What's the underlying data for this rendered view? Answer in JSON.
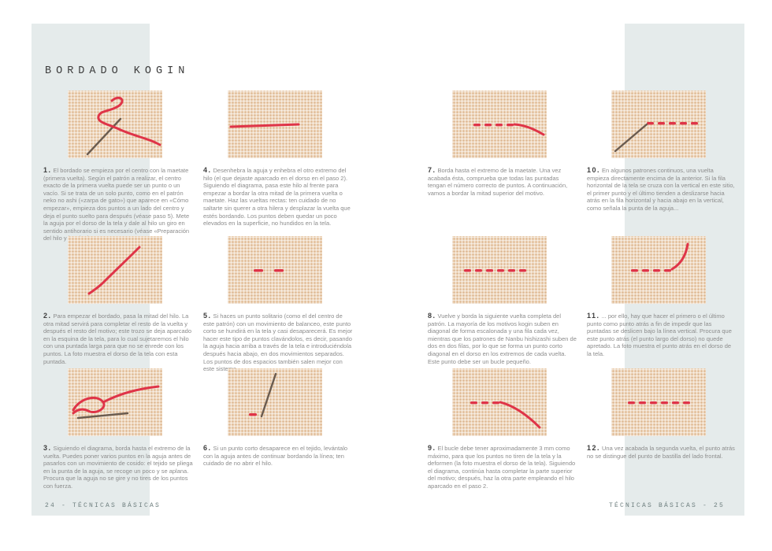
{
  "page": {
    "title": "BORDADO KOGIN",
    "left_footer": "24 - TÉCNICAS BÁSICAS",
    "right_footer": "TÉCNICAS BÁSICAS - 25"
  },
  "colors": {
    "accent_band": "#e5ebeb",
    "fabric": "#f2dabe",
    "thread": "#df3448",
    "needle": "#6a5b4f",
    "caption_text": "#8c8c8c",
    "step_number": "#3e3e3e"
  },
  "steps": [
    {
      "number": "1.",
      "caption": "El bordado se empieza por el centro con la maetate (primera vuelta). Según el patrón a realizar, el centro exacto de la primera vuelta puede ser un punto o un vacío. Si se trata de un solo punto, como en el patrón neko no ashi («zarpa de gato») que aparece en «Cómo empezar», empieza dos puntos a un lado del centro y deja el punto suelto para después (véase paso 5). Mete la aguja por el dorso de la tela y dale al hilo un giro en sentido antihorario si es necesario (véase «Preparación del hilo y la tela»).",
      "art": {
        "stitches": [],
        "needle": [
          25,
          81,
          67,
          36
        ],
        "threads": [
          "M 56 13 C 66 4 75 13 64 20 C 53 27 41 25 39 33 C 37 41 53 43 67 50 C 88 59 103 61 117 69"
        ]
      }
    },
    {
      "number": "2.",
      "caption": "Para empezar el bordado, pasa la mitad del hilo. La otra mitad servirá para completar el resto de la vuelta y después el resto del motivo; este trozo se deja aparcado en la esquina de la tela, para lo cual sujetaremos el hilo con una puntada larga para que no se enrede con los puntos. La foto muestra el dorso de la tela con esta puntada.",
      "art": {
        "stitches": [],
        "needle": null,
        "threads": [
          "M 91 14 C 76 29 57 47 45 59 C 39 65 33 69 27 73"
        ]
      }
    },
    {
      "number": "3.",
      "caption": "Siguiendo el diagrama, borda hasta el extremo de la vuelta. Puedes poner varios puntos en la aguja antes de pasarlos con un movimiento de cosido: el tejido se pliega en la punta de la aguja, se recoge un poco y se aplana. Procura que la aguja no se gire y no tires de los puntos con fuerza.",
      "art": {
        "stitches": [],
        "needle": [
          13,
          63,
          76,
          57
        ],
        "threads": [
          "M 7 53 C 15 38 37 32 45 43 C 50 51 35 59 26 54 C 18 50 11 53 7 57",
          "M 45 43 C 68 31 90 26 115 23"
        ]
      }
    },
    {
      "number": "4.",
      "caption": "Desenhebra la aguja y enhebra el otro extremo del hilo (el que dejaste aparcado en el dorso en el paso 2). Siguiendo el diagrama, pasa este hilo al frente para empezar a bordar la otra mitad de la primera vuelta o maetate. Haz las vueltas rectas: ten cuidado de no saltarte sin querer a otra hilera y desplazar la vuelta que estés bordando. Los puntos deben quedar un poco elevados en la superficie, no hundidos en la tela.",
      "art": {
        "stitches": [],
        "needle": null,
        "threads": [
          "M 4 46 C 30 45 60 44 90 43"
        ]
      }
    },
    {
      "number": "5.",
      "caption": "Si haces un punto solitario (como el del centro de este patrón) con un movimiento de balanceo, este punto corto se hundirá en la tela y casi desaparecerá. Es mejor hacer este tipo de puntos clavándolos, es decir, pasando la aguja hacia arriba a través de la tela e introduciéndola después hacia abajo, en dos movimientos separados. Los puntos de dos espacios también salen mejor con este sistema.",
      "art": {
        "stitches": [
          [
            33,
            42,
            12
          ],
          [
            59,
            42,
            12
          ]
        ],
        "needle": null,
        "threads": []
      }
    },
    {
      "number": "6.",
      "caption": "Si un punto corto desaparece en el tejido, levántalo con la aguja antes de continuar bordando la línea; ten cuidado de no abrir el hilo.",
      "art": {
        "stitches": [
          [
            27,
            57,
            10
          ]
        ],
        "needle": [
          61,
          7,
          43,
          61
        ],
        "threads": []
      }
    },
    {
      "number": "7.",
      "caption": "Borda hasta el extremo de la maetate. Una vez acabada ésta, comprueba que todas las puntadas tengan el número correcto de puntos. A continuación, vamos a bordar la mitad superior del motivo.",
      "art": {
        "stitches": [
          [
            27,
            42,
            9
          ],
          [
            41,
            42,
            9
          ],
          [
            55,
            42,
            9
          ],
          [
            69,
            42,
            9
          ]
        ],
        "needle": null,
        "threads": [
          "M 79 43 C 93 44 104 49 116 56"
        ]
      }
    },
    {
      "number": "8.",
      "caption": "Vuelve y borda la siguiente vuelta completa del patrón. La mayoría de los motivos kogin suben en diagonal de forma escalonada y una fila cada vez, mientras que los patrones de Nanbu hishizashi suben de dos en dos filas, por lo que se forma un punto corto diagonal en el dorso en los extremos de cada vuelta. Este punto debe ser un bucle pequeño.",
      "art": {
        "stitches": [
          [
            15,
            42,
            9
          ],
          [
            29,
            42,
            9
          ],
          [
            43,
            42,
            9
          ],
          [
            57,
            42,
            9
          ],
          [
            71,
            42,
            9
          ],
          [
            85,
            42,
            9
          ]
        ],
        "needle": null,
        "threads": []
      }
    },
    {
      "number": "9.",
      "caption": "El bucle debe tener aproximadamente 3 mm como máximo, para que los puntos no tiren de la tela y la deformen (la foto muestra el dorso de la tela). Siguiendo el diagrama, continúa hasta completar la parte superior del motivo; después, haz la otra parte empleando el hilo aparcado en el paso 2.",
      "art": {
        "stitches": [
          [
            23,
            42,
            9
          ],
          [
            37,
            42,
            9
          ],
          [
            51,
            42,
            9
          ]
        ],
        "needle": null,
        "threads": [
          "M 61 43 C 80 48 97 61 111 75"
        ]
      }
    },
    {
      "number": "10.",
      "caption": "En algunos patrones continuos, una vuelta empieza directamente encima de la anterior. Si la fila horizontal de la tela se cruza con la vertical en este sitio, el primer punto y el último tienden a deslizarse hacia atrás en la fila horizontal y hacia abajo en la vertical, como señala la punta de la aguja...",
      "art": {
        "stitches": [
          [
            45,
            40,
            9
          ],
          [
            59,
            40,
            9
          ],
          [
            73,
            40,
            9
          ],
          [
            87,
            40,
            9
          ],
          [
            101,
            40,
            9
          ]
        ],
        "needle": [
          5,
          77,
          45,
          43
        ],
        "threads": []
      }
    },
    {
      "number": "11.",
      "caption": "... por ello, hay que hacer el primero o el último punto como punto atrás a fin de impedir que las puntadas se deslicen bajo la línea vertical. Procura que este punto atrás (el punto largo del dorso) no quede apretado. La foto muestra el punto atrás en el dorso de la tela.",
      "art": {
        "stitches": [
          [
            25,
            42,
            9
          ],
          [
            39,
            42,
            9
          ],
          [
            53,
            42,
            9
          ],
          [
            67,
            42,
            9
          ]
        ],
        "needle": null,
        "threads": [
          "M 77 42 C 89 35 95 23 97 10"
        ]
      }
    },
    {
      "number": "12.",
      "caption": "Una vez acabada la segunda vuelta, el punto atrás no se distingue del punto de bastilla del lado frontal.",
      "art": {
        "stitches": [
          [
            21,
            42,
            9
          ],
          [
            35,
            42,
            9
          ],
          [
            49,
            42,
            9
          ],
          [
            63,
            42,
            9
          ],
          [
            77,
            42,
            9
          ],
          [
            91,
            42,
            9
          ]
        ],
        "needle": null,
        "threads": []
      }
    }
  ]
}
